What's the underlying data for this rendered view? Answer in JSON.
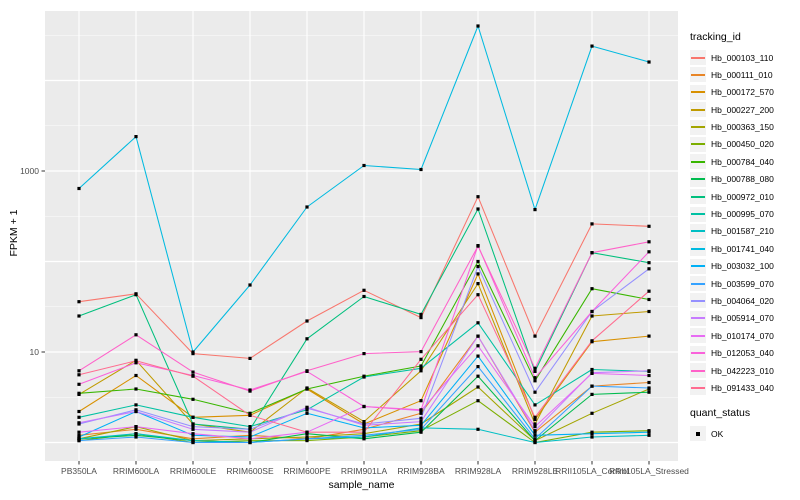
{
  "chart_data": {
    "type": "line",
    "title": "",
    "xlabel": "sample_name",
    "ylabel": "FPKM + 1",
    "y_scale": "log10",
    "ylim": [
      1,
      50000
    ],
    "y_ticks_labeled": [
      1000,
      10
    ],
    "grid": "white-on-grey",
    "panel_bg": "#EBEBEB",
    "grid_color": "#FFFFFF",
    "tick_label_color": "#4D4D4D",
    "point_shape": "square",
    "point_color": "#000000",
    "legend": {
      "position": "right",
      "color_title": "tracking_id",
      "shape_title": "quant_status",
      "shape_entries": [
        {
          "label": "OK"
        }
      ],
      "key_bg": "#F2F2F2"
    },
    "categories": [
      "PB350LA",
      "RRIM600LA",
      "RRIM600LE",
      "RRIM600SE",
      "RRIM600PE",
      "RRIM901LA",
      "RRIM928BA",
      "RRIM928LA",
      "RRIM928LE",
      "RRII105LA_Control",
      "RRII105LA_Stressed"
    ],
    "series": [
      {
        "name": "Hb_000103_110",
        "color": "#F8766D",
        "values": [
          36,
          44,
          9.6,
          8.5,
          22,
          48,
          24,
          520,
          15,
          260,
          245
        ]
      },
      {
        "name": "Hb_000111_010",
        "color": "#E88526",
        "values": [
          1.2,
          1.4,
          1.1,
          1.2,
          1.1,
          1.4,
          2.1,
          15,
          1.3,
          4.2,
          4.6
        ]
      },
      {
        "name": "Hb_000172_570",
        "color": "#D89000",
        "values": [
          2.2,
          5.5,
          1.9,
          2.0,
          3.9,
          1.6,
          2.9,
          73,
          1.8,
          13,
          15
        ]
      },
      {
        "name": "Hb_000227_200",
        "color": "#C09B00",
        "values": [
          3.4,
          8.1,
          1.6,
          1.3,
          4.0,
          1.7,
          6.2,
          57,
          1.6,
          25,
          28
        ]
      },
      {
        "name": "Hb_000363_150",
        "color": "#A3A500",
        "values": [
          1.1,
          1.5,
          1.05,
          1.1,
          1.15,
          1.25,
          1.6,
          4.1,
          1.05,
          2.1,
          3.9
        ]
      },
      {
        "name": "Hb_000450_020",
        "color": "#7CAE00",
        "values": [
          1.05,
          1.25,
          1.0,
          1.05,
          1.05,
          1.15,
          1.35,
          2.9,
          1.0,
          1.3,
          1.35
        ]
      },
      {
        "name": "Hb_000784_040",
        "color": "#39B600",
        "values": [
          3.5,
          3.9,
          3.0,
          2.1,
          3.9,
          5.4,
          7.0,
          100,
          4.8,
          50,
          38
        ]
      },
      {
        "name": "Hb_000788_080",
        "color": "#00BB4E",
        "values": [
          1.1,
          1.2,
          1.05,
          1.0,
          1.25,
          1.1,
          1.3,
          5.4,
          1.05,
          3.4,
          3.6
        ]
      },
      {
        "name": "Hb_000972_010",
        "color": "#00BF7D",
        "values": [
          25,
          43,
          1.6,
          1.4,
          14,
          41,
          26,
          380,
          6.1,
          125,
          97
        ]
      },
      {
        "name": "Hb_000995_070",
        "color": "#00C1A3",
        "values": [
          1.9,
          2.6,
          1.9,
          1.5,
          2.3,
          5.3,
          6.6,
          21,
          2.6,
          6.4,
          6.1
        ]
      },
      {
        "name": "Hb_001587_210",
        "color": "#00BFC4",
        "values": [
          1.1,
          1.25,
          1.05,
          1.0,
          1.1,
          1.15,
          1.45,
          1.4,
          1.0,
          1.15,
          1.2
        ]
      },
      {
        "name": "Hb_001741_040",
        "color": "#00BAE0",
        "values": [
          640,
          2400,
          10,
          55,
          400,
          1150,
          1040,
          40000,
          375,
          24000,
          16000
        ]
      },
      {
        "name": "Hb_003032_100",
        "color": "#00B0F6",
        "values": [
          1.15,
          2.2,
          1.2,
          1.15,
          2.1,
          1.45,
          1.55,
          9.0,
          1.2,
          1.25,
          1.3
        ]
      },
      {
        "name": "Hb_003599_070",
        "color": "#35A2FF",
        "values": [
          1.05,
          1.15,
          1.0,
          1.0,
          1.1,
          1.2,
          1.4,
          6.9,
          1.1,
          4.2,
          4.0
        ]
      },
      {
        "name": "Hb_004064_020",
        "color": "#9590FF",
        "values": [
          1.6,
          2.3,
          1.5,
          1.4,
          2.4,
          1.6,
          1.85,
          88,
          3.6,
          28,
          83
        ]
      },
      {
        "name": "Hb_005914_070",
        "color": "#C77CFF",
        "values": [
          1.65,
          2.2,
          1.4,
          1.3,
          2.45,
          1.55,
          1.7,
          15,
          1.35,
          5.9,
          6.2
        ]
      },
      {
        "name": "Hb_010174_070",
        "color": "#E76BF3",
        "values": [
          1.3,
          1.5,
          1.25,
          1.1,
          1.3,
          2.5,
          2.25,
          11.7,
          1.5,
          5.8,
          5.5
        ]
      },
      {
        "name": "Hb_012053_040",
        "color": "#FA62DB",
        "values": [
          4.4,
          7.6,
          5.5,
          3.8,
          6.1,
          2.5,
          2.3,
          150,
          5.2,
          28,
          128
        ]
      },
      {
        "name": "Hb_042223_010",
        "color": "#FF61C9",
        "values": [
          6.2,
          15.5,
          6.0,
          3.7,
          6.2,
          9.6,
          10.1,
          148,
          6.6,
          125,
          165
        ]
      },
      {
        "name": "Hb_091433_040",
        "color": "#FF6C90",
        "values": [
          5.6,
          8.0,
          5.4,
          2.0,
          1.3,
          1.3,
          8.3,
          43,
          1.9,
          13.3,
          47
        ]
      }
    ]
  }
}
